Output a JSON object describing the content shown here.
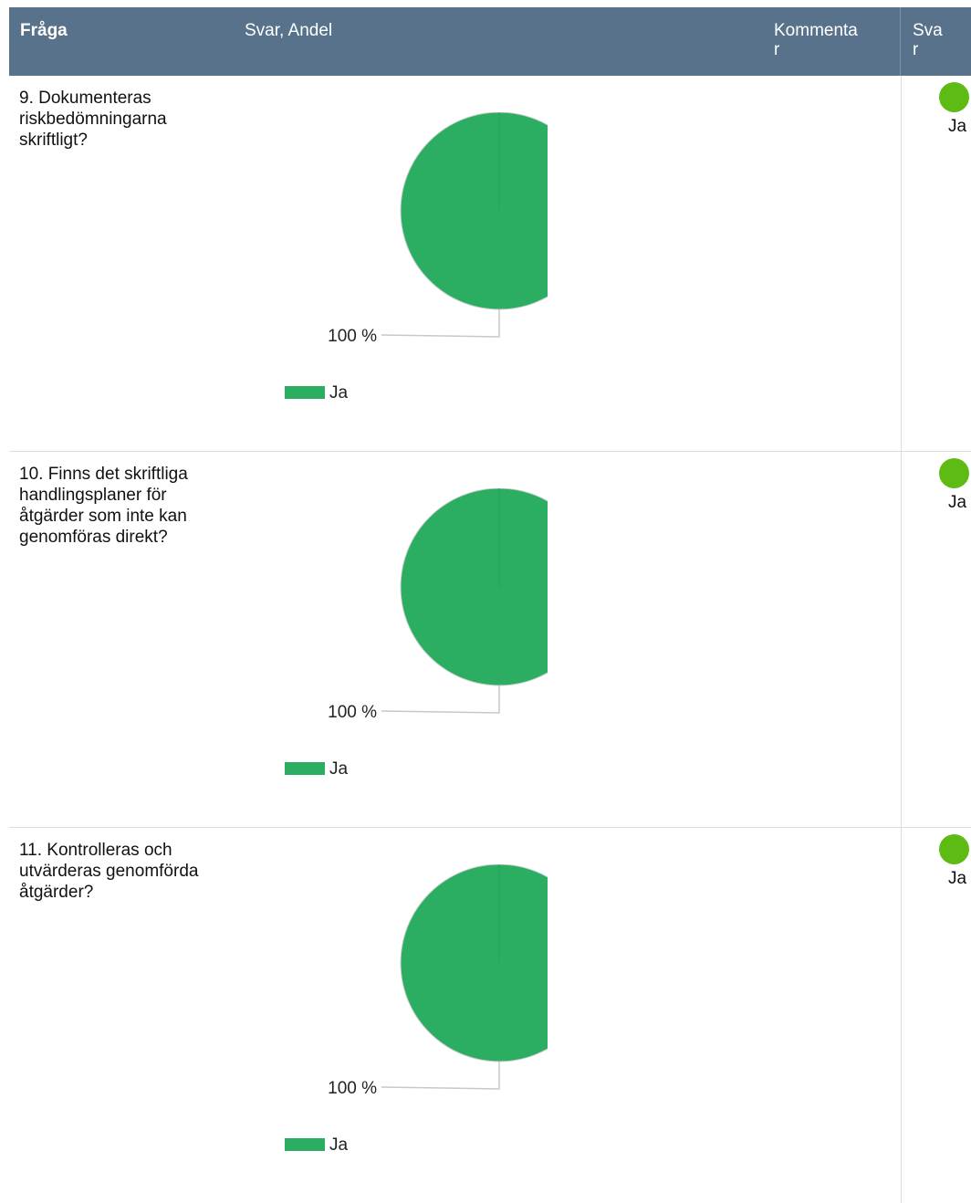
{
  "header": {
    "fraga": "Fråga",
    "svar_andel": "Svar, Andel",
    "kommentar_line1": "Kommenta",
    "kommentar_line2": "r",
    "svar_line1": "Sva",
    "svar_line2": "r"
  },
  "colors": {
    "header_bg": "#58728c",
    "pie_green": "#2bae62",
    "answer_dot": "#5dbb14"
  },
  "rows": [
    {
      "question": "9. Dokumenteras riskbedömningarna skriftligt?",
      "answer": "Ja",
      "chart_data": {
        "type": "pie",
        "categories": [
          "Ja"
        ],
        "values": [
          100
        ],
        "labels": [
          "100 %"
        ],
        "legend": [
          "Ja"
        ]
      }
    },
    {
      "question": "10. Finns det skriftliga handlingsplaner för åtgärder som inte kan genomföras direkt?",
      "answer": "Ja",
      "chart_data": {
        "type": "pie",
        "categories": [
          "Ja"
        ],
        "values": [
          100
        ],
        "labels": [
          "100 %"
        ],
        "legend": [
          "Ja"
        ]
      }
    },
    {
      "question": "11. Kontrolleras och utvärderas genomförda åtgärder?",
      "answer": "Ja",
      "chart_data": {
        "type": "pie",
        "categories": [
          "Ja"
        ],
        "values": [
          100
        ],
        "labels": [
          "100 %"
        ],
        "legend": [
          "Ja"
        ]
      }
    }
  ]
}
